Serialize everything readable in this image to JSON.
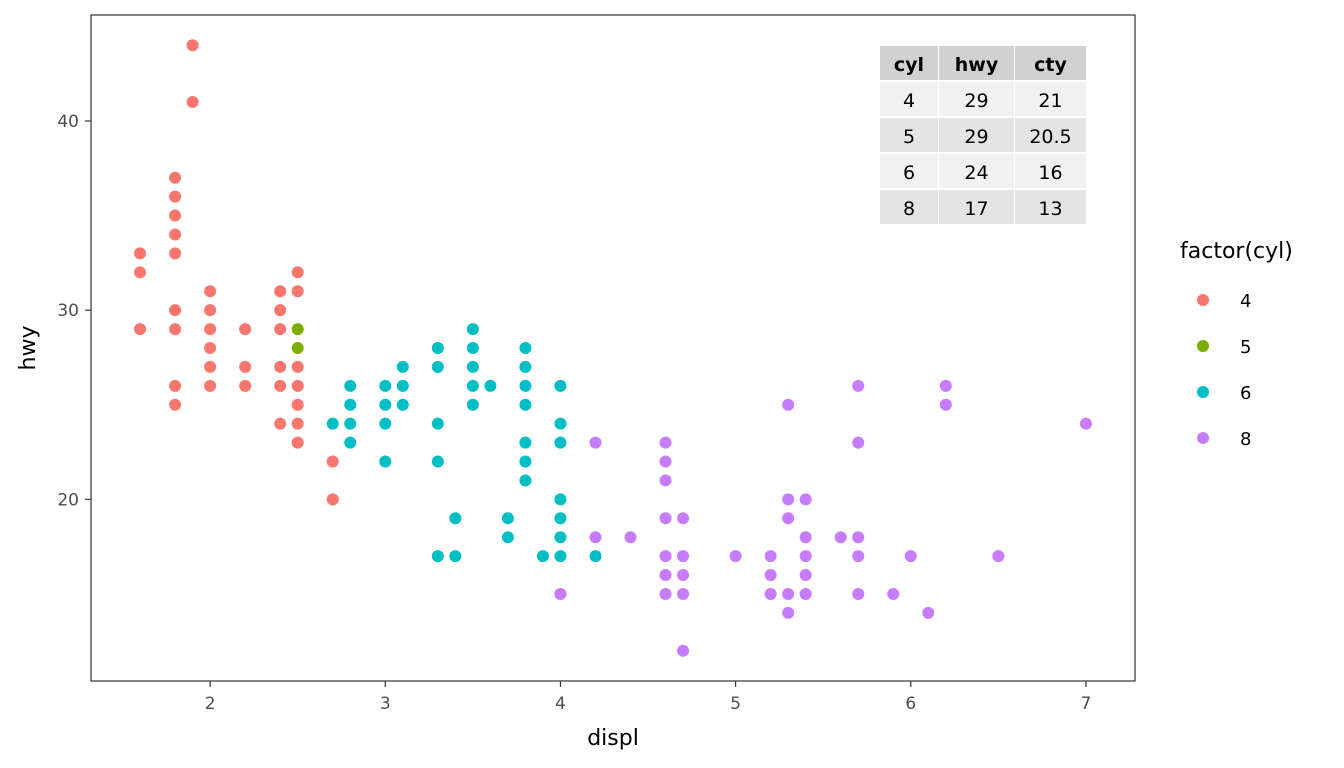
{
  "chart_data": {
    "type": "scatter",
    "title": "",
    "xlabel": "displ",
    "ylabel": "hwy",
    "xlim": [
      1.32,
      7.28
    ],
    "ylim": [
      10.4,
      45.6
    ],
    "x_ticks": [
      2,
      3,
      4,
      5,
      6,
      7
    ],
    "y_ticks": [
      20,
      30,
      40
    ],
    "grid": false,
    "legend": {
      "title": "factor(cyl)",
      "position": "right",
      "entries": [
        {
          "label": "4",
          "color": "#F8766D"
        },
        {
          "label": "5",
          "color": "#7CAE00"
        },
        {
          "label": "6",
          "color": "#00BFC4"
        },
        {
          "label": "8",
          "color": "#C77CFF"
        }
      ]
    },
    "series": [
      {
        "group": "4",
        "color": "#F8766D",
        "points": [
          [
            1.6,
            33
          ],
          [
            1.6,
            32
          ],
          [
            1.6,
            29
          ],
          [
            1.8,
            37
          ],
          [
            1.8,
            36
          ],
          [
            1.8,
            35
          ],
          [
            1.8,
            34
          ],
          [
            1.8,
            33
          ],
          [
            1.8,
            30
          ],
          [
            1.8,
            29
          ],
          [
            1.8,
            26
          ],
          [
            1.8,
            25
          ],
          [
            1.9,
            44
          ],
          [
            1.9,
            41
          ],
          [
            2.0,
            31
          ],
          [
            2.0,
            30
          ],
          [
            2.0,
            29
          ],
          [
            2.0,
            28
          ],
          [
            2.0,
            27
          ],
          [
            2.0,
            26
          ],
          [
            2.2,
            29
          ],
          [
            2.2,
            27
          ],
          [
            2.2,
            26
          ],
          [
            2.4,
            31
          ],
          [
            2.4,
            30
          ],
          [
            2.4,
            29
          ],
          [
            2.4,
            27
          ],
          [
            2.4,
            26
          ],
          [
            2.4,
            24
          ],
          [
            2.5,
            32
          ],
          [
            2.5,
            31
          ],
          [
            2.5,
            27
          ],
          [
            2.5,
            26
          ],
          [
            2.5,
            25
          ],
          [
            2.5,
            24
          ],
          [
            2.5,
            23
          ],
          [
            2.7,
            22
          ],
          [
            2.7,
            20
          ]
        ]
      },
      {
        "group": "5",
        "color": "#7CAE00",
        "points": [
          [
            2.5,
            29
          ],
          [
            2.5,
            28
          ]
        ]
      },
      {
        "group": "6",
        "color": "#00BFC4",
        "points": [
          [
            2.7,
            24
          ],
          [
            2.8,
            26
          ],
          [
            2.8,
            25
          ],
          [
            2.8,
            24
          ],
          [
            2.8,
            23
          ],
          [
            3.0,
            26
          ],
          [
            3.0,
            25
          ],
          [
            3.0,
            24
          ],
          [
            3.0,
            22
          ],
          [
            3.1,
            27
          ],
          [
            3.1,
            26
          ],
          [
            3.1,
            25
          ],
          [
            3.3,
            28
          ],
          [
            3.3,
            27
          ],
          [
            3.3,
            24
          ],
          [
            3.3,
            22
          ],
          [
            3.3,
            17
          ],
          [
            3.4,
            19
          ],
          [
            3.4,
            17
          ],
          [
            3.5,
            29
          ],
          [
            3.5,
            28
          ],
          [
            3.5,
            27
          ],
          [
            3.5,
            26
          ],
          [
            3.5,
            25
          ],
          [
            3.6,
            26
          ],
          [
            3.7,
            19
          ],
          [
            3.7,
            18
          ],
          [
            3.8,
            28
          ],
          [
            3.8,
            27
          ],
          [
            3.8,
            26
          ],
          [
            3.8,
            25
          ],
          [
            3.8,
            23
          ],
          [
            3.8,
            22
          ],
          [
            3.8,
            21
          ],
          [
            3.9,
            17
          ],
          [
            4.0,
            26
          ],
          [
            4.0,
            24
          ],
          [
            4.0,
            23
          ],
          [
            4.0,
            20
          ],
          [
            4.0,
            19
          ],
          [
            4.0,
            18
          ],
          [
            4.0,
            17
          ],
          [
            4.2,
            17
          ]
        ]
      },
      {
        "group": "8",
        "color": "#C77CFF",
        "points": [
          [
            4.0,
            15
          ],
          [
            4.2,
            23
          ],
          [
            4.2,
            18
          ],
          [
            4.4,
            18
          ],
          [
            4.6,
            23
          ],
          [
            4.6,
            22
          ],
          [
            4.6,
            21
          ],
          [
            4.6,
            19
          ],
          [
            4.6,
            17
          ],
          [
            4.6,
            16
          ],
          [
            4.6,
            15
          ],
          [
            4.7,
            19
          ],
          [
            4.7,
            17
          ],
          [
            4.7,
            16
          ],
          [
            4.7,
            15
          ],
          [
            4.7,
            12
          ],
          [
            5.0,
            17
          ],
          [
            5.2,
            17
          ],
          [
            5.2,
            16
          ],
          [
            5.2,
            15
          ],
          [
            5.3,
            25
          ],
          [
            5.3,
            20
          ],
          [
            5.3,
            19
          ],
          [
            5.3,
            15
          ],
          [
            5.3,
            14
          ],
          [
            5.4,
            20
          ],
          [
            5.4,
            18
          ],
          [
            5.4,
            17
          ],
          [
            5.4,
            16
          ],
          [
            5.4,
            15
          ],
          [
            5.6,
            18
          ],
          [
            5.7,
            26
          ],
          [
            5.7,
            23
          ],
          [
            5.7,
            18
          ],
          [
            5.7,
            17
          ],
          [
            5.7,
            15
          ],
          [
            5.9,
            15
          ],
          [
            6.0,
            17
          ],
          [
            6.1,
            14
          ],
          [
            6.2,
            26
          ],
          [
            6.2,
            25
          ],
          [
            6.5,
            17
          ],
          [
            7.0,
            24
          ]
        ]
      }
    ],
    "table": {
      "columns": [
        "cyl",
        "hwy",
        "cty"
      ],
      "rows": [
        [
          "4",
          "29",
          "21"
        ],
        [
          "5",
          "29",
          "20.5"
        ],
        [
          "6",
          "24",
          "16"
        ],
        [
          "8",
          "17",
          "13"
        ]
      ]
    }
  }
}
